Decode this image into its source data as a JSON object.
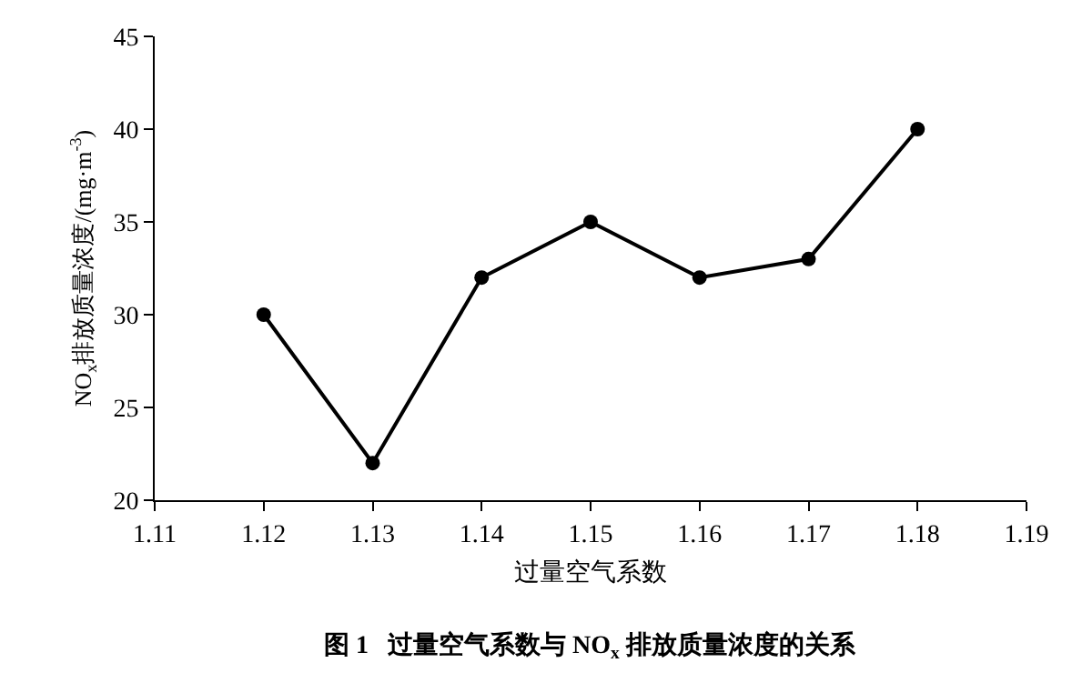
{
  "chart_data": {
    "type": "line",
    "xlabel": "过量空气系数",
    "ylabel": "NO$_{x}$排放质量浓度/(mg·m$^{-3}$)",
    "annotations": [
      "图 1   过量空气系数与 NO$_{x}$ 排放质量浓度的关系"
    ],
    "x": [
      1.12,
      1.13,
      1.14,
      1.15,
      1.16,
      1.17,
      1.18
    ],
    "series": [
      {
        "color": "#000000",
        "values": [
          30,
          22,
          32,
          35,
          32,
          33,
          40
        ]
      }
    ],
    "xlim": [
      1.11,
      1.19
    ],
    "xticks": [
      {
        "value": 1.11,
        "label": "1.11"
      },
      {
        "value": 1.12,
        "label": "1.12"
      },
      {
        "value": 1.13,
        "label": "1.13"
      },
      {
        "value": 1.14,
        "label": "1.14"
      },
      {
        "value": 1.15,
        "label": "1.15"
      },
      {
        "value": 1.16,
        "label": "1.16"
      },
      {
        "value": 1.17,
        "label": "1.17"
      },
      {
        "value": 1.18,
        "label": "1.18"
      },
      {
        "value": 1.19,
        "label": "1.19"
      }
    ],
    "ylim": [
      20,
      45
    ],
    "yticks": [
      20,
      25,
      30,
      35,
      40,
      45
    ],
    "marker": "circle",
    "line_style": "solid"
  }
}
